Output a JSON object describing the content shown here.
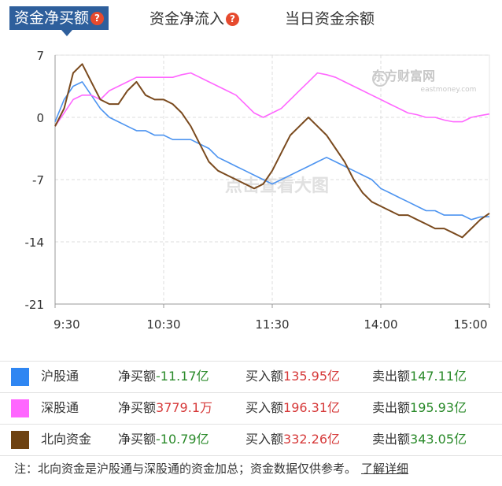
{
  "tabs": [
    {
      "label": "资金净买额",
      "has_help": true
    },
    {
      "label": "资金净流入",
      "has_help": true
    },
    {
      "label": "当日资金余额",
      "has_help": false
    }
  ],
  "help_icon": "?",
  "watermark": {
    "brand": "东方财富网",
    "domain": "eastmoney.com",
    "overlay": "点击查看大图"
  },
  "chart_data": {
    "type": "line",
    "y_ticks": [
      7,
      0,
      -7,
      -14,
      -21
    ],
    "ylim": [
      -21,
      7
    ],
    "x_ticks": [
      "9:30",
      "10:30",
      "11:30",
      "14:00",
      "15:00"
    ],
    "x_range_index": [
      0,
      240
    ],
    "grid": true,
    "series": [
      {
        "name": "沪股通",
        "color": "#4d94f0",
        "x": [
          0,
          5,
          10,
          15,
          20,
          25,
          30,
          35,
          40,
          45,
          50,
          55,
          60,
          65,
          70,
          75,
          80,
          85,
          90,
          95,
          100,
          105,
          110,
          115,
          120,
          125,
          130,
          135,
          140,
          145,
          150,
          155,
          160,
          165,
          170,
          175,
          180,
          185,
          190,
          195,
          200,
          205,
          210,
          215,
          220,
          225,
          230,
          235,
          240
        ],
        "values": [
          -0.5,
          2,
          3.5,
          4,
          2.5,
          1,
          0,
          -0.5,
          -1,
          -1.5,
          -1.5,
          -2,
          -2,
          -2.5,
          -2.5,
          -2.5,
          -3,
          -3.5,
          -4.5,
          -5,
          -5.5,
          -6,
          -6.5,
          -7,
          -7.5,
          -7,
          -6.5,
          -6,
          -5.5,
          -5,
          -4.5,
          -5,
          -5.5,
          -6,
          -6.5,
          -7,
          -8,
          -8.5,
          -9,
          -9.5,
          -10,
          -10.5,
          -10.5,
          -11,
          -11,
          -11,
          -11.5,
          -11.2,
          -11.17
        ]
      },
      {
        "name": "深股通",
        "color": "#ff66ff",
        "x": [
          0,
          5,
          10,
          15,
          20,
          25,
          30,
          35,
          40,
          45,
          50,
          55,
          60,
          65,
          70,
          75,
          80,
          85,
          90,
          95,
          100,
          105,
          110,
          115,
          120,
          125,
          130,
          135,
          140,
          145,
          150,
          155,
          160,
          165,
          170,
          175,
          180,
          185,
          190,
          195,
          200,
          205,
          210,
          215,
          220,
          225,
          230,
          235,
          240
        ],
        "values": [
          -1,
          0.5,
          2,
          2.5,
          2.5,
          2,
          3,
          3.5,
          4,
          4.5,
          4.5,
          4.5,
          4.5,
          4.5,
          4.8,
          5,
          4.5,
          4,
          3.5,
          3,
          2.5,
          1.5,
          0.5,
          0,
          0.5,
          1,
          2,
          3,
          4,
          5,
          4.8,
          4.5,
          4,
          3.5,
          3,
          2.5,
          2,
          1.5,
          1,
          0.5,
          0.3,
          0,
          0,
          -0.3,
          -0.5,
          -0.5,
          0,
          0.2,
          0.38
        ]
      },
      {
        "name": "北向资金",
        "color": "#7a4a1e",
        "x": [
          0,
          5,
          10,
          15,
          20,
          25,
          30,
          35,
          40,
          45,
          50,
          55,
          60,
          65,
          70,
          75,
          80,
          85,
          90,
          95,
          100,
          105,
          110,
          115,
          120,
          125,
          130,
          135,
          140,
          145,
          150,
          155,
          160,
          165,
          170,
          175,
          180,
          185,
          190,
          195,
          200,
          205,
          210,
          215,
          220,
          225,
          230,
          235,
          240
        ],
        "values": [
          -1,
          1,
          5,
          6,
          4,
          2,
          1.5,
          1.5,
          3,
          4,
          2.5,
          2,
          2,
          1.5,
          0.5,
          -1,
          -3,
          -5,
          -6,
          -6.5,
          -7,
          -7.5,
          -8,
          -7.5,
          -6,
          -4,
          -2,
          -1,
          0,
          -1,
          -2,
          -3.5,
          -5,
          -7,
          -8.5,
          -9.5,
          -10,
          -10.5,
          -11,
          -11,
          -11.5,
          -12,
          -12.5,
          -12.5,
          -13,
          -13.5,
          -12.5,
          -11.5,
          -10.79
        ]
      }
    ]
  },
  "legend_rows": [
    {
      "name": "沪股通",
      "color": "#2f86f2",
      "net_label": "净买额",
      "net_value": "-11.17亿",
      "net_sign": "neg",
      "buy_label": "买入额",
      "buy_value": "135.95亿",
      "sell_label": "卖出额",
      "sell_value": "147.11亿"
    },
    {
      "name": "深股通",
      "color": "#ff66ff",
      "net_label": "净买额",
      "net_value": "3779.1万",
      "net_sign": "pos",
      "buy_label": "买入额",
      "buy_value": "196.31亿",
      "sell_label": "卖出额",
      "sell_value": "195.93亿"
    },
    {
      "name": "北向资金",
      "color": "#6e4211",
      "net_label": "净买额",
      "net_value": "-10.79亿",
      "net_sign": "neg",
      "buy_label": "买入额",
      "buy_value": "332.26亿",
      "sell_label": "卖出额",
      "sell_value": "343.05亿"
    }
  ],
  "note": {
    "text": "注：北向资金是沪股通与深股通的资金加总；资金数据仅供参考。",
    "link": "了解详细"
  }
}
